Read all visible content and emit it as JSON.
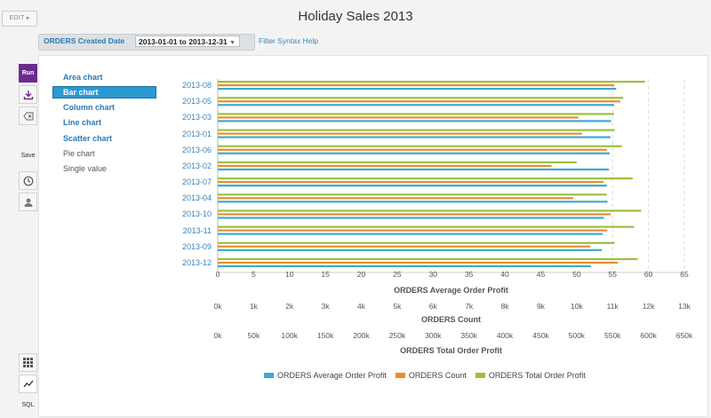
{
  "header": {
    "edit_label": "EDIT",
    "title": "Holiday Sales 2013"
  },
  "filter": {
    "label": "ORDERS Created Date",
    "value": "2013-01-01 to 2013-12-31",
    "help_link": "Filter Syntax Help"
  },
  "toolbar": {
    "run_label": "Run",
    "save_label": "Save",
    "sql_label": "SQL",
    "icons": [
      "download-icon",
      "clear-icon",
      "clock-icon",
      "user-icon",
      "grid-icon",
      "chart-line-icon"
    ]
  },
  "chart_types": [
    {
      "label": "Area chart",
      "state": "link"
    },
    {
      "label": "Bar chart",
      "state": "active"
    },
    {
      "label": "Column chart",
      "state": "link"
    },
    {
      "label": "Line chart",
      "state": "link"
    },
    {
      "label": "Scatter chart",
      "state": "link"
    },
    {
      "label": "Pie chart",
      "state": "plain"
    },
    {
      "label": "Single value",
      "state": "plain"
    }
  ],
  "colors": {
    "average": "#3fa9d1",
    "count": "#e98d2b",
    "total": "#9dc03b",
    "accent": "#6b2a8e"
  },
  "chart_data": {
    "type": "bar",
    "orientation": "horizontal",
    "categories": [
      "2013-08",
      "2013-05",
      "2013-03",
      "2013-01",
      "2013-06",
      "2013-02",
      "2013-07",
      "2013-04",
      "2013-10",
      "2013-11",
      "2013-09",
      "2013-12"
    ],
    "series": [
      {
        "name": "ORDERS Average Order Profit",
        "axis": 0,
        "values": [
          55.5,
          55.2,
          54.8,
          54.7,
          54.6,
          54.5,
          54.2,
          54.3,
          53.8,
          53.6,
          53.5,
          52.0
        ]
      },
      {
        "name": "ORDERS Count",
        "axis": 1,
        "values": [
          11050,
          11220,
          10050,
          10150,
          10840,
          9300,
          10750,
          9900,
          10950,
          10850,
          10380,
          11150
        ]
      },
      {
        "name": "ORDERS Total Order Profit",
        "axis": 2,
        "values": [
          595000,
          565000,
          552000,
          553000,
          563000,
          500000,
          578000,
          542000,
          590000,
          580000,
          553000,
          585000
        ]
      }
    ],
    "axes": [
      {
        "title": "ORDERS Average Order Profit",
        "ticks": [
          "0",
          "5",
          "10",
          "15",
          "20",
          "25",
          "30",
          "35",
          "40",
          "45",
          "50",
          "55",
          "60",
          "65"
        ],
        "max": 65
      },
      {
        "title": "ORDERS Count",
        "ticks": [
          "0k",
          "1k",
          "2k",
          "3k",
          "4k",
          "5k",
          "6k",
          "7k",
          "8k",
          "9k",
          "10k",
          "11k",
          "12k",
          "13k"
        ],
        "max": 13000
      },
      {
        "title": "ORDERS Total Order Profit",
        "ticks": [
          "0k",
          "50k",
          "100k",
          "150k",
          "200k",
          "250k",
          "300k",
          "350k",
          "400k",
          "450k",
          "500k",
          "550k",
          "600k",
          "650k"
        ],
        "max": 650000
      }
    ],
    "legend": {
      "position": "bottom"
    },
    "grid": true
  }
}
